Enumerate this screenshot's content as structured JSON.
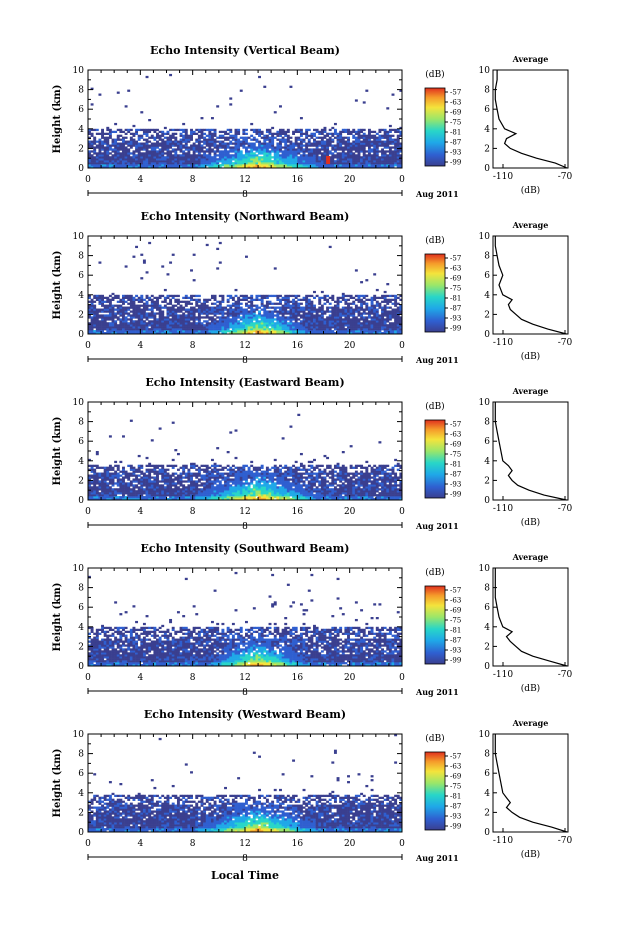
{
  "figure": {
    "xlabel": "Local Time",
    "ylabel": "Height (km)",
    "date_label": "Aug 2011",
    "day_label": "8",
    "colorbar_unit": "(dB)",
    "colorbar_ticks": [
      "-57",
      "-63",
      "-69",
      "-75",
      "-81",
      "-87",
      "-93",
      "-99"
    ],
    "avg_title": "Average",
    "avg_xlabel": "(dB)",
    "avg_xticks": [
      "-110",
      "-70"
    ],
    "time_ticks": [
      "0",
      "4",
      "8",
      "12",
      "16",
      "20",
      "0"
    ],
    "height_ticks": [
      "0",
      "2",
      "4",
      "6",
      "8",
      "10"
    ]
  },
  "colors": {
    "colormap": [
      "#3a3f8f",
      "#2f5fd0",
      "#1fa8e8",
      "#28d6c8",
      "#9ae66a",
      "#f4e43c",
      "#f59a2a",
      "#e0301e"
    ],
    "background": "#ffffff"
  },
  "chart_data": [
    {
      "type": "heatmap",
      "title": "Echo Intensity (Vertical Beam)",
      "xlabel": "Local Time",
      "ylabel": "Height (km)",
      "xlim": [
        0,
        24
      ],
      "ylim": [
        0,
        10
      ],
      "zlim": [
        -99,
        -57
      ],
      "zlabel": "(dB)",
      "description_values": {
        "main_layer_top_km": 4.0,
        "strong_echo_time_range_h": [
          8,
          18
        ]
      },
      "average_profile": {
        "title": "Average",
        "xlabel": "(dB)",
        "xlim": [
          -110,
          -70
        ],
        "height_km": [
          0,
          0.5,
          1,
          1.5,
          2,
          2.5,
          3,
          3.5,
          4,
          5,
          6,
          7,
          8,
          9,
          10
        ],
        "intensity_db": [
          -72,
          -80,
          -90,
          -98,
          -104,
          -107,
          -106,
          -101,
          -107,
          -110,
          -111,
          -112,
          -112,
          -111,
          -111
        ]
      }
    },
    {
      "type": "heatmap",
      "title": "Echo Intensity (Northward Beam)",
      "xlabel": "Local Time",
      "ylabel": "Height (km)",
      "xlim": [
        0,
        24
      ],
      "ylim": [
        0,
        10
      ],
      "zlim": [
        -99,
        -57
      ],
      "zlabel": "(dB)",
      "description_values": {
        "main_layer_top_km": 4.0,
        "strong_echo_time_range_h": [
          9,
          17
        ]
      },
      "average_profile": {
        "title": "Average",
        "xlabel": "(dB)",
        "xlim": [
          -110,
          -70
        ],
        "height_km": [
          0,
          0.5,
          1,
          1.5,
          2,
          2.5,
          3,
          3.5,
          4,
          5,
          6,
          7,
          8,
          9,
          10
        ],
        "intensity_db": [
          -74,
          -84,
          -92,
          -98,
          -101,
          -104,
          -105,
          -103,
          -108,
          -110,
          -108,
          -110,
          -111,
          -112,
          -112
        ]
      }
    },
    {
      "type": "heatmap",
      "title": "Echo Intensity (Eastward Beam)",
      "xlabel": "Local Time",
      "ylabel": "Height (km)",
      "xlim": [
        0,
        24
      ],
      "ylim": [
        0,
        10
      ],
      "zlim": [
        -99,
        -57
      ],
      "zlabel": "(dB)",
      "description_values": {
        "main_layer_top_km": 3.7,
        "strong_echo_time_range_h": [
          8,
          18
        ]
      },
      "average_profile": {
        "title": "Average",
        "xlabel": "(dB)",
        "xlim": [
          -110,
          -70
        ],
        "height_km": [
          0,
          0.5,
          1,
          1.5,
          2,
          2.5,
          3,
          3.5,
          4,
          5,
          6,
          7,
          8,
          9,
          10
        ],
        "intensity_db": [
          -74,
          -86,
          -94,
          -100,
          -103,
          -105,
          -103,
          -105,
          -108,
          -109,
          -110,
          -111,
          -112,
          -112,
          -112
        ]
      }
    },
    {
      "type": "heatmap",
      "title": "Echo Intensity (Southward Beam)",
      "xlabel": "Local Time",
      "ylabel": "Height (km)",
      "xlim": [
        0,
        24
      ],
      "ylim": [
        0,
        10
      ],
      "zlim": [
        -99,
        -57
      ],
      "zlabel": "(dB)",
      "description_values": {
        "main_layer_top_km": 4.0,
        "strong_echo_time_range_h": [
          9,
          17
        ]
      },
      "average_profile": {
        "title": "Average",
        "xlabel": "(dB)",
        "xlim": [
          -110,
          -70
        ],
        "height_km": [
          0,
          0.5,
          1,
          1.5,
          2,
          2.5,
          3,
          3.5,
          4,
          5,
          6,
          7,
          8,
          9,
          10
        ],
        "intensity_db": [
          -73,
          -83,
          -92,
          -98,
          -101,
          -104,
          -106,
          -103,
          -108,
          -110,
          -111,
          -112,
          -112,
          -112,
          -112
        ]
      }
    },
    {
      "type": "heatmap",
      "title": "Echo Intensity (Westward Beam)",
      "xlabel": "Local Time",
      "ylabel": "Height (km)",
      "xlim": [
        0,
        24
      ],
      "ylim": [
        0,
        10
      ],
      "zlim": [
        -99,
        -57
      ],
      "zlabel": "(dB)",
      "description_values": {
        "main_layer_top_km": 3.8,
        "strong_echo_time_range_h": [
          8,
          18
        ]
      },
      "average_profile": {
        "title": "Average",
        "xlabel": "(dB)",
        "xlim": [
          -110,
          -70
        ],
        "height_km": [
          0,
          0.5,
          1,
          1.5,
          2,
          2.5,
          3,
          3.5,
          4,
          5,
          6,
          7,
          8,
          9,
          10
        ],
        "intensity_db": [
          -72,
          -82,
          -92,
          -99,
          -103,
          -106,
          -104,
          -106,
          -108,
          -109,
          -110,
          -111,
          -112,
          -112,
          -112
        ]
      }
    }
  ]
}
